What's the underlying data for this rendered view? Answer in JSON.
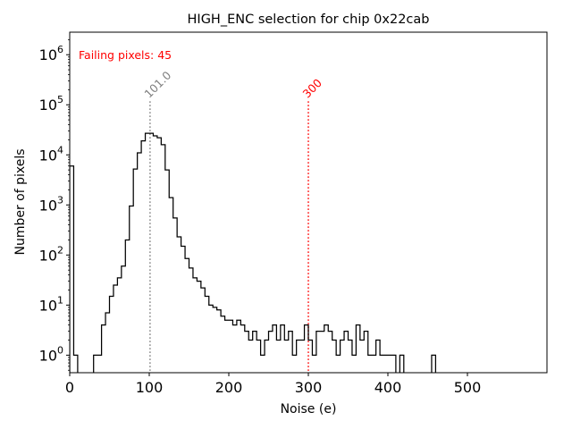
{
  "chart_data": {
    "type": "histogram",
    "title": "HIGH_ENC selection for chip 0x22cab",
    "xlabel": "Noise (e)",
    "ylabel": "Number of pixels",
    "xlim": [
      0,
      600
    ],
    "ylim_log10": [
      -0.35,
      6.45
    ],
    "yscale": "log",
    "x_ticks": [
      0,
      100,
      200,
      300,
      400,
      500
    ],
    "x_tick_labels": [
      "0",
      "100",
      "200",
      "300",
      "400",
      "500"
    ],
    "y_ticks_exp": [
      0,
      1,
      2,
      3,
      4,
      5,
      6
    ],
    "y_tick_base": "10",
    "bin_width": 5,
    "bins": [
      [
        0,
        6000
      ],
      [
        5,
        1
      ],
      [
        10,
        0
      ],
      [
        15,
        0
      ],
      [
        20,
        0
      ],
      [
        25,
        0
      ],
      [
        30,
        1
      ],
      [
        35,
        1
      ],
      [
        40,
        4
      ],
      [
        45,
        7
      ],
      [
        50,
        15
      ],
      [
        55,
        25
      ],
      [
        60,
        35
      ],
      [
        65,
        60
      ],
      [
        70,
        200
      ],
      [
        75,
        950
      ],
      [
        80,
        5200
      ],
      [
        85,
        11000
      ],
      [
        90,
        19000
      ],
      [
        95,
        27000
      ],
      [
        100,
        27000
      ],
      [
        105,
        24000
      ],
      [
        110,
        22000
      ],
      [
        115,
        16000
      ],
      [
        120,
        5000
      ],
      [
        125,
        1400
      ],
      [
        130,
        550
      ],
      [
        135,
        230
      ],
      [
        140,
        150
      ],
      [
        145,
        85
      ],
      [
        150,
        55
      ],
      [
        155,
        35
      ],
      [
        160,
        30
      ],
      [
        165,
        22
      ],
      [
        170,
        15
      ],
      [
        175,
        10
      ],
      [
        180,
        9
      ],
      [
        185,
        8
      ],
      [
        190,
        6
      ],
      [
        195,
        5
      ],
      [
        200,
        5
      ],
      [
        205,
        4
      ],
      [
        210,
        5
      ],
      [
        215,
        4
      ],
      [
        220,
        3
      ],
      [
        225,
        2
      ],
      [
        230,
        3
      ],
      [
        235,
        2
      ],
      [
        240,
        1
      ],
      [
        245,
        2
      ],
      [
        250,
        3
      ],
      [
        255,
        4
      ],
      [
        260,
        2
      ],
      [
        265,
        4
      ],
      [
        270,
        2
      ],
      [
        275,
        3
      ],
      [
        280,
        1
      ],
      [
        285,
        2
      ],
      [
        290,
        2
      ],
      [
        295,
        4
      ],
      [
        300,
        2
      ],
      [
        305,
        1
      ],
      [
        310,
        3
      ],
      [
        315,
        3
      ],
      [
        320,
        4
      ],
      [
        325,
        3
      ],
      [
        330,
        2
      ],
      [
        335,
        1
      ],
      [
        340,
        2
      ],
      [
        345,
        3
      ],
      [
        350,
        2
      ],
      [
        355,
        1
      ],
      [
        360,
        4
      ],
      [
        365,
        2
      ],
      [
        370,
        3
      ],
      [
        375,
        1
      ],
      [
        380,
        1
      ],
      [
        385,
        2
      ],
      [
        390,
        1
      ],
      [
        395,
        1
      ],
      [
        400,
        1
      ],
      [
        405,
        1
      ],
      [
        410,
        0
      ],
      [
        415,
        1
      ],
      [
        420,
        0
      ],
      [
        425,
        0
      ],
      [
        430,
        0
      ],
      [
        435,
        0
      ],
      [
        440,
        0
      ],
      [
        445,
        0
      ],
      [
        450,
        0
      ],
      [
        455,
        1
      ],
      [
        460,
        0
      ]
    ],
    "vlines": [
      {
        "x": 101,
        "label": "101.0",
        "color": "#808080"
      },
      {
        "x": 300,
        "label": "300",
        "color": "#ff0000"
      }
    ],
    "annotation": {
      "text": "Failing pixels: 45",
      "color": "#ff0000",
      "position": "top-left"
    }
  }
}
